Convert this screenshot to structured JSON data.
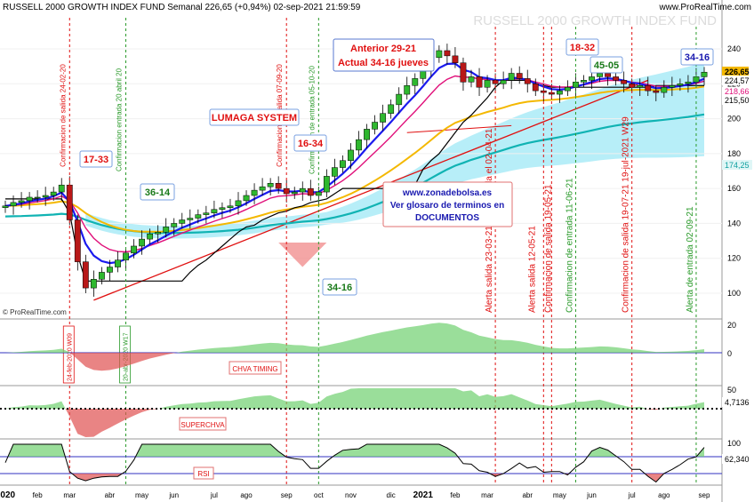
{
  "header": {
    "title": "RUSSELL 2000 GROWTH INDEX FUND Semanal 226,65 (+0,94%) 02-sep-2021 21:59:59",
    "site": "www.ProRealTime.com",
    "watermark": "RUSSELL 2000 GROWTH INDEX FUND",
    "copyright": "© ProRealTime.com"
  },
  "colors": {
    "up_candle": "#2fb82f",
    "down_candle": "#b81818",
    "blue_ma": "#1a1aee",
    "magenta_ma": "#e0107a",
    "black_line": "#000000",
    "yellow_ma": "#f4b800",
    "teal_ma": "#10b3b3",
    "cloud": "#9fe8f5",
    "trendline": "#e01010",
    "label_red": "#e01010",
    "label_green": "#1a7a1a",
    "label_blue": "#1a1ab0"
  },
  "annotations": {
    "boxes": [
      {
        "name": "label-17-33",
        "text": "17-33",
        "color": "red"
      },
      {
        "name": "label-36-14",
        "text": "36-14",
        "color": "green"
      },
      {
        "name": "label-16-34",
        "text": "16-34",
        "color": "red"
      },
      {
        "name": "label-34-16-bottom",
        "text": "34-16",
        "color": "green"
      },
      {
        "name": "label-18-32",
        "text": "18-32",
        "color": "red"
      },
      {
        "name": "label-45-05",
        "text": "45-05",
        "color": "green"
      },
      {
        "name": "label-34-16-top",
        "text": "34-16",
        "color": "blue"
      }
    ],
    "lumaga": "LUMAGA SYSTEM",
    "anterior_line1": "Anterior 29-21",
    "anterior_line2": "Actual 34-16 jueves",
    "info_line1": "www.zonadebolsa.es",
    "info_line2": "Ver glosaro de terminos en",
    "info_line3": "DOCUMENTOS",
    "vlabels": [
      {
        "name": "vlabel-conf-salida-24feb",
        "text": "Confirmacion de salida 24-02-20",
        "color": "red"
      },
      {
        "name": "vlabel-conf-entrada-20abr",
        "text": "Confirmacion entrada 20 abril 20",
        "color": "green"
      },
      {
        "name": "vlabel-conf-salida-07sep",
        "text": "Confirmacion de salida 07-09-20",
        "color": "red"
      },
      {
        "name": "vlabel-conf-entrada-05oct",
        "text": "Confirmacion de entrada 05-10-20",
        "color": "green"
      },
      {
        "name": "vlabel-alerta-salida-23mar",
        "text": "Alerta salida 23-03-21 desactivada el 02-04-21",
        "color": "red"
      },
      {
        "name": "vlabel-alerta-salida-12may",
        "text": "Alerta salida 12-05-21",
        "color": "red"
      },
      {
        "name": "vlabel-conf-salida-19may",
        "text": "Confirmacion de salida 19-05-21",
        "color": "red"
      },
      {
        "name": "vlabel-conf-entrada-11jun",
        "text": "Confirmacion de entrada 11-06-21",
        "color": "green"
      },
      {
        "name": "vlabel-conf-salida-19jul",
        "text": "Confirmacion de salida 19-07-21 19-jul-2021 W29",
        "color": "red"
      },
      {
        "name": "vlabel-alerta-entrada-02sep",
        "text": "Alerta de entrada 02-09-21",
        "color": "green"
      },
      {
        "name": "vlabel-24feb-w09",
        "text": "24-feb-2020 W09",
        "color": "red"
      },
      {
        "name": "vlabel-20abr-w17",
        "text": "20-abr-2020 W17",
        "color": "green"
      }
    ]
  },
  "price_tags": {
    "last": "226,65",
    "p224": "224,57",
    "p218": "218,66",
    "p215": "215,50",
    "p174": "174,25"
  },
  "chva": {
    "label": "CHVA TIMING",
    "ticks": [
      "20",
      "0"
    ]
  },
  "superchva": {
    "label": "SUPERCHVA",
    "ticks": [
      "50"
    ],
    "value_tag": "4,7136"
  },
  "rsi": {
    "label": "RSI",
    "ticks": [
      "100"
    ],
    "value_tag": "62,340"
  },
  "chart_data": {
    "type": "candlestick",
    "title": "RUSSELL 2000 GROWTH INDEX FUND Semanal 226,65 (+0,94%) 02-sep-2021 21:59:59",
    "ylim": [
      90,
      265
    ],
    "yticks": [
      100,
      120,
      140,
      160,
      180,
      200,
      220,
      240,
      260
    ],
    "x_labels": [
      "2020",
      "feb",
      "mar",
      "abr",
      "may",
      "jun",
      "jul",
      "ago",
      "sep",
      "oct",
      "nov",
      "dic",
      "2021",
      "feb",
      "mar",
      "abr",
      "may",
      "jun",
      "jul",
      "ago",
      "sep"
    ],
    "x_label_weeks": [
      0,
      4,
      8,
      13,
      17,
      21,
      26,
      30,
      35,
      39,
      43,
      48,
      52,
      56,
      60,
      65,
      69,
      73,
      78,
      82,
      87
    ],
    "last_close": 226.65,
    "change_pct": "+0,94%",
    "date": "02-sep-2021",
    "closes": [
      150,
      152,
      153,
      155,
      155,
      156,
      158,
      162,
      142,
      118,
      103,
      108,
      112,
      115,
      119,
      123,
      127,
      131,
      134,
      135,
      138,
      140,
      142,
      143,
      145,
      146,
      148,
      149,
      150,
      153,
      156,
      159,
      161,
      163,
      160,
      157,
      158,
      160,
      156,
      158,
      167,
      172,
      176,
      182,
      188,
      194,
      198,
      203,
      208,
      214,
      219,
      223,
      229,
      235,
      239,
      236,
      232,
      221,
      224,
      218,
      222,
      220,
      222,
      226,
      223,
      220,
      216,
      215,
      214,
      216,
      218,
      221,
      222,
      224,
      226,
      224,
      222,
      220,
      218,
      219,
      216,
      215,
      218,
      219,
      220,
      221,
      224,
      226.65
    ]
  }
}
